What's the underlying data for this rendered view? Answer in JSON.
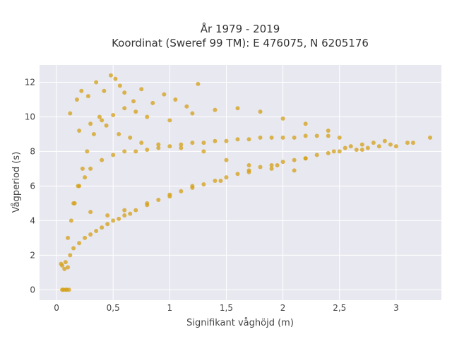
{
  "chart_data": {
    "type": "scatter",
    "title": "År 1979 - 2019",
    "subtitle": "Koordinat (Sweref 99 TM): E 476075, N 6205176",
    "xlabel": "Signifikant våghöjd (m)",
    "ylabel": "Vågperiod (s)",
    "xlim": [
      -0.15,
      3.4
    ],
    "ylim": [
      -0.6,
      13.0
    ],
    "x_ticks": [
      0,
      0.5,
      1,
      1.5,
      2,
      2.5,
      3
    ],
    "x_tick_labels": [
      "0",
      "0,5",
      "1",
      "1,5",
      "2",
      "2,5",
      "3"
    ],
    "y_ticks": [
      0,
      2,
      4,
      6,
      8,
      10,
      12
    ],
    "y_tick_labels": [
      "0",
      "2",
      "4",
      "6",
      "8",
      "10",
      "12"
    ],
    "grid": true,
    "legend": "none",
    "colors": {
      "marker": "#d4a017",
      "plot_background": "#e8e8f0",
      "grid": "#ffffff"
    },
    "series": [
      {
        "x": [
          0.05,
          0.07,
          0.08,
          0.1,
          0.04,
          0.12,
          0.15,
          0.2,
          0.25,
          0.3,
          0.35,
          0.4,
          0.45,
          0.5,
          0.55,
          0.6,
          0.65,
          0.7,
          0.8,
          0.9,
          1.0,
          1.1,
          1.2,
          1.3,
          1.4,
          1.5,
          1.6,
          1.7,
          1.8,
          1.9,
          2.0,
          2.1,
          2.2,
          2.3,
          2.4,
          2.5,
          2.55,
          2.6,
          2.65,
          2.7,
          2.75,
          2.8,
          2.85,
          2.9,
          2.95,
          3.0,
          3.1,
          3.15,
          3.3,
          0.15,
          0.2,
          0.25,
          0.3,
          0.4,
          0.5,
          0.6,
          0.7,
          0.8,
          0.9,
          1.0,
          1.1,
          1.2,
          1.3,
          1.4,
          1.5,
          1.6,
          1.7,
          1.8,
          1.9,
          2.0,
          2.1,
          2.2,
          2.3,
          2.4,
          2.5,
          0.12,
          0.18,
          0.22,
          0.28,
          0.35,
          0.42,
          0.48,
          0.52,
          0.56,
          0.6,
          0.68,
          0.75,
          0.85,
          0.95,
          1.05,
          1.15,
          1.25,
          0.2,
          0.3,
          0.4,
          0.5,
          0.6,
          0.7,
          0.8,
          1.0,
          1.2,
          1.4,
          1.6,
          1.8,
          2.0,
          2.2,
          2.4,
          0.1,
          0.13,
          0.16,
          0.19,
          0.23,
          0.27,
          0.33,
          0.38,
          0.44,
          0.55,
          0.65,
          0.75,
          0.9,
          1.1,
          1.3,
          1.5,
          1.7,
          1.9,
          2.1,
          0.3,
          0.45,
          0.6,
          0.8,
          1.0,
          1.2,
          1.45,
          1.7,
          1.95,
          2.2,
          2.45,
          2.7,
          0.06,
          0.09,
          0.11,
          0.05,
          0.08
        ],
        "y": [
          1.4,
          1.2,
          1.6,
          1.3,
          1.5,
          2.0,
          2.4,
          2.7,
          3.0,
          3.2,
          3.4,
          3.6,
          3.8,
          4.0,
          4.1,
          4.3,
          4.4,
          4.6,
          4.9,
          5.2,
          5.4,
          5.7,
          5.9,
          6.1,
          6.3,
          6.5,
          6.7,
          6.9,
          7.1,
          7.2,
          7.4,
          7.5,
          7.6,
          7.8,
          7.9,
          8.0,
          8.2,
          8.3,
          8.1,
          8.4,
          8.2,
          8.5,
          8.3,
          8.6,
          8.4,
          8.3,
          8.5,
          8.5,
          8.8,
          5.0,
          6.0,
          6.5,
          7.0,
          7.5,
          7.8,
          8.0,
          8.0,
          8.1,
          8.2,
          8.3,
          8.4,
          8.5,
          8.5,
          8.6,
          8.6,
          8.7,
          8.7,
          8.8,
          8.8,
          8.8,
          8.8,
          8.9,
          8.9,
          8.9,
          8.8,
          10.2,
          11.0,
          11.5,
          11.2,
          12.0,
          11.5,
          12.4,
          12.2,
          11.8,
          11.4,
          10.9,
          11.6,
          10.8,
          11.3,
          11.0,
          10.6,
          11.9,
          9.2,
          9.6,
          9.8,
          10.1,
          10.5,
          10.3,
          10.0,
          9.8,
          10.2,
          10.4,
          10.5,
          10.3,
          9.9,
          9.6,
          9.2,
          3.0,
          4.0,
          5.0,
          6.0,
          7.0,
          8.0,
          9.0,
          10.0,
          9.5,
          9.0,
          8.8,
          8.5,
          8.4,
          8.2,
          8.0,
          7.5,
          7.2,
          7.0,
          6.9,
          4.5,
          4.3,
          4.6,
          5.0,
          5.5,
          6.0,
          6.3,
          6.8,
          7.2,
          7.6,
          8.0,
          8.1,
          0.0,
          0.0,
          0.0,
          0.0,
          0.0
        ]
      }
    ]
  }
}
